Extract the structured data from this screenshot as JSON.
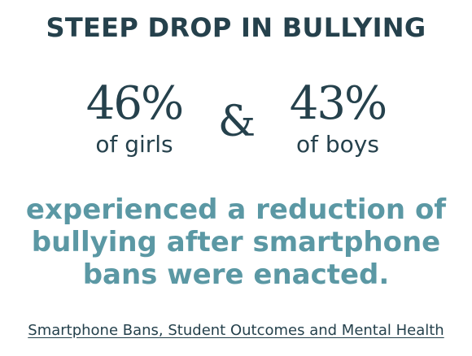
{
  "headline": "STEEP DROP IN BULLYING",
  "stats": {
    "girls": {
      "value": "46%",
      "label": "of girls"
    },
    "boys": {
      "value": "43%",
      "label": "of boys"
    },
    "joiner": "&"
  },
  "statement": "experienced a reduction of bullying after smartphone bans were enacted.",
  "source": {
    "link_text": "Smartphone Bans, Student Outcomes and Mental Health"
  },
  "colors": {
    "dark_teal": "#25414c",
    "light_teal": "#5b98a4",
    "background": "#ffffff"
  }
}
